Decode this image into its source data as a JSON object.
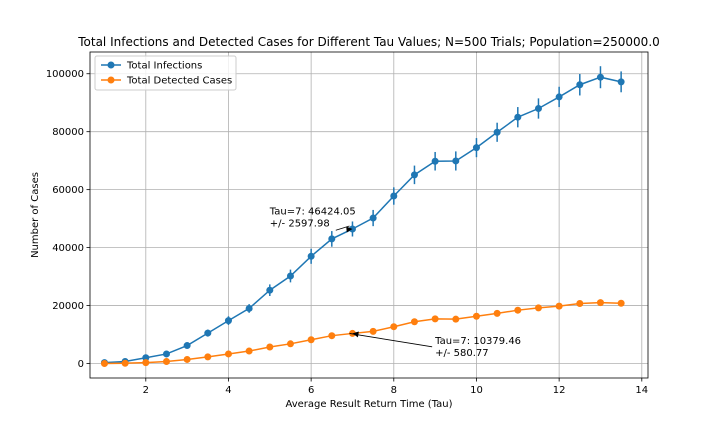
{
  "chart_data": {
    "type": "line",
    "title": "Total Infections and Detected Cases for Different Tau Values; N=500 Trials; Population=250000.0",
    "xlabel": "Average Result Return Time (Tau)",
    "ylabel": "Number of Cases",
    "xlim": [
      0.65,
      14.15
    ],
    "ylim": [
      -5000,
      107500
    ],
    "xticks": [
      2,
      4,
      6,
      8,
      10,
      12,
      14
    ],
    "yticks": [
      0,
      20000,
      40000,
      60000,
      80000,
      100000
    ],
    "grid": true,
    "legend_position": "top-left",
    "x": [
      1,
      1.5,
      2,
      2.5,
      3,
      3.5,
      4,
      4.5,
      5,
      5.5,
      6,
      6.5,
      7,
      7.5,
      8,
      8.5,
      9,
      9.5,
      10,
      10.5,
      11,
      11.5,
      12,
      12.5,
      13,
      13.5
    ],
    "series": [
      {
        "name": "Total Infections",
        "color": "#1f77b4",
        "values": [
          300,
          700,
          2000,
          3300,
          6200,
          10500,
          14800,
          19000,
          25300,
          30200,
          37000,
          43000,
          46424,
          50200,
          57800,
          65100,
          69800,
          69900,
          74500,
          79800,
          85000,
          88000,
          92000,
          96200,
          98800,
          97200
        ],
        "errors": [
          300,
          300,
          500,
          700,
          1000,
          1200,
          1500,
          1500,
          2000,
          2200,
          2600,
          2700,
          2598,
          2800,
          3000,
          3200,
          3200,
          3300,
          3300,
          3300,
          3500,
          3500,
          3500,
          3700,
          3800,
          3600
        ]
      },
      {
        "name": "Total Detected Cases",
        "color": "#ff7f0e",
        "values": [
          0,
          100,
          300,
          700,
          1400,
          2300,
          3300,
          4300,
          5700,
          6800,
          8200,
          9600,
          10379,
          11100,
          12700,
          14400,
          15400,
          15300,
          16300,
          17300,
          18400,
          19200,
          19800,
          20700,
          21000,
          20800
        ],
        "errors": [
          100,
          100,
          150,
          200,
          250,
          300,
          350,
          400,
          450,
          480,
          520,
          560,
          581,
          600,
          620,
          640,
          660,
          670,
          680,
          690,
          700,
          710,
          720,
          730,
          740,
          740
        ]
      }
    ],
    "annotations": [
      {
        "line1": "Tau=7: 46424.05",
        "line2": "+/- 2597.98",
        "x": 7,
        "y": 46424.05,
        "text_x": 5,
        "text_y": 51500
      },
      {
        "line1": "Tau=7: 10379.46",
        "line2": "+/- 580.77",
        "x": 7,
        "y": 10379.46,
        "text_x": 9,
        "text_y": 6800
      }
    ]
  }
}
